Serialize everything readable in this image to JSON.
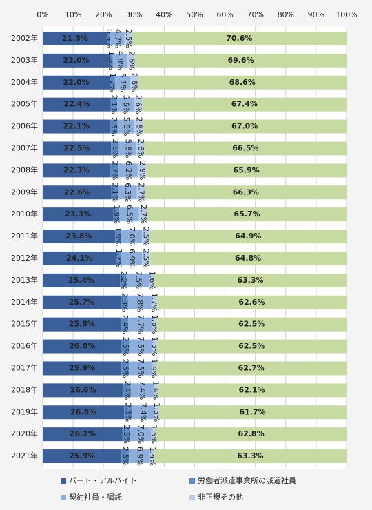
{
  "chart_data": {
    "type": "stacked_bar_horizontal",
    "categories": [
      "2002年",
      "2003年",
      "2004年",
      "2005年",
      "2006年",
      "2007年",
      "2008年",
      "2009年",
      "2010年",
      "2011年",
      "2012年",
      "2013年",
      "2014年",
      "2015年",
      "2016年",
      "2017年",
      "2018年",
      "2019年",
      "2020年",
      "2021年"
    ],
    "xlim": [
      0,
      100
    ],
    "xticks": [
      {
        "value": 0,
        "label": "0%"
      },
      {
        "value": 10,
        "label": "10%"
      },
      {
        "value": 20,
        "label": "20%"
      },
      {
        "value": 30,
        "label": "30%"
      },
      {
        "value": 40,
        "label": "40%"
      },
      {
        "value": 50,
        "label": "50%"
      },
      {
        "value": 60,
        "label": "60%"
      },
      {
        "value": 70,
        "label": "70%"
      },
      {
        "value": 80,
        "label": "80%"
      },
      {
        "value": 90,
        "label": "90%"
      },
      {
        "value": 100,
        "label": "100%"
      }
    ],
    "grid": true,
    "series": [
      {
        "name": "パート・アルバイト",
        "color": "#3b5f98",
        "values": [
          21.3,
          22.0,
          22.0,
          22.4,
          22.1,
          22.5,
          22.3,
          22.6,
          23.3,
          23.8,
          24.1,
          25.4,
          25.7,
          25.8,
          26.0,
          25.9,
          26.6,
          26.8,
          26.2,
          25.9
        ],
        "value_labels": [
          "21.3%",
          "22.0%",
          "22.0%",
          "22.4%",
          "22.1%",
          "22.5%",
          "22.3%",
          "22.6%",
          "23.3%",
          "23.8%",
          "24.1%",
          "25.4%",
          "25.7%",
          "25.8%",
          "26.0%",
          "25.9%",
          "26.6%",
          "26.8%",
          "26.2%",
          "25.9%"
        ]
      },
      {
        "name": "労働者派遣事業所の派遣社員",
        "color": "#5a8cc8",
        "values": [
          0.9,
          1.0,
          1.7,
          2.1,
          2.5,
          2.6,
          2.7,
          2.1,
          1.9,
          1.9,
          1.7,
          2.2,
          2.3,
          2.4,
          2.5,
          2.5,
          2.4,
          2.5,
          2.5,
          2.5
        ],
        "value_labels": [
          "0.9%",
          "1.0%",
          "1.7%",
          "2.1%",
          "2.5%",
          "2.6%",
          "2.7%",
          "2.1%",
          "1.9%",
          "1.9%",
          "1.7%",
          "2.2%",
          "2.3%",
          "2.4%",
          "2.5%",
          "2.5%",
          "2.4%",
          "2.5%",
          "2.5%",
          "2.5%"
        ]
      },
      {
        "name": "契約社員・嘱託",
        "color": "#8eafdc",
        "values": [
          4.7,
          4.8,
          5.1,
          5.6,
          5.6,
          5.8,
          6.2,
          6.3,
          6.5,
          7.0,
          6.9,
          7.5,
          7.8,
          7.7,
          7.5,
          7.5,
          7.4,
          7.4,
          7.0,
          6.9
        ],
        "value_labels": [
          "4.7%",
          "4.8%",
          "5.1%",
          "5.6%",
          "5.6%",
          "5.8%",
          "6.2%",
          "6.3%",
          "6.5%",
          "7.0%",
          "6.9%",
          "7.5%",
          "7.8%",
          "7.7%",
          "7.5%",
          "7.5%",
          "7.4%",
          "7.4%",
          "7.0%",
          "6.9%"
        ]
      },
      {
        "name": "非正規その他",
        "color": "#b9cce8",
        "values": [
          2.5,
          2.6,
          2.6,
          2.6,
          2.8,
          2.6,
          2.9,
          2.7,
          2.7,
          2.5,
          2.5,
          1.6,
          1.7,
          1.6,
          1.5,
          1.4,
          1.4,
          1.5,
          1.5,
          1.4
        ],
        "value_labels": [
          "2.5%",
          "2.6%",
          "2.6%",
          "2.6%",
          "2.8%",
          "2.6%",
          "2.9%",
          "2.7%",
          "2.7%",
          "2.5%",
          "2.5%",
          "1.6%",
          "1.7%",
          "1.6%",
          "1.5%",
          "1.4%",
          "1.4%",
          "1.5%",
          "1.5%",
          "1.4%"
        ]
      },
      {
        "color": "#c6daa2",
        "values": [
          70.6,
          69.6,
          68.6,
          67.4,
          67.0,
          66.5,
          65.9,
          66.3,
          65.7,
          64.9,
          64.8,
          63.3,
          62.6,
          62.5,
          62.5,
          62.7,
          62.1,
          61.7,
          62.8,
          63.3
        ],
        "value_labels": [
          "70.6%",
          "69.6%",
          "68.6%",
          "67.4%",
          "67.0%",
          "66.5%",
          "65.9%",
          "66.3%",
          "65.7%",
          "64.9%",
          "64.8%",
          "63.3%",
          "62.6%",
          "62.5%",
          "62.5%",
          "62.7%",
          "62.1%",
          "61.7%",
          "62.8%",
          "63.3%"
        ]
      }
    ]
  }
}
